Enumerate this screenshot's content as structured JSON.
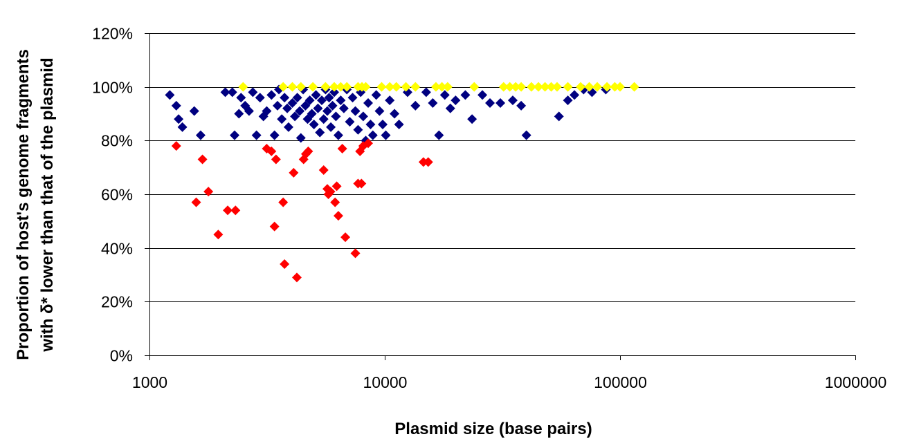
{
  "chart_data": {
    "type": "scatter",
    "title": "",
    "xlabel": "Plasmid size (base pairs)",
    "ylabel_lines": [
      "Proportion of host's genome fragments",
      "with δ* lower than that of the plasmid"
    ],
    "x_scale": "log",
    "xlim": [
      1000,
      1000000
    ],
    "ylim": [
      0,
      1.2
    ],
    "x_ticks": [
      1000,
      10000,
      100000,
      1000000
    ],
    "x_tick_labels": [
      "1000",
      "10000",
      "100000",
      "1000000"
    ],
    "y_ticks": [
      0,
      0.2,
      0.4,
      0.6,
      0.8,
      1.0,
      1.2
    ],
    "y_tick_labels": [
      "0%",
      "20%",
      "40%",
      "60%",
      "80%",
      "100%",
      "120%"
    ],
    "grid": "horizontal",
    "legend": "none",
    "marker": "diamond",
    "series": [
      {
        "color": "#000080",
        "points": [
          [
            1220,
            0.97
          ],
          [
            1300,
            0.93
          ],
          [
            1330,
            0.88
          ],
          [
            1380,
            0.85
          ],
          [
            1550,
            0.91
          ],
          [
            1650,
            0.82
          ],
          [
            2100,
            0.98
          ],
          [
            2250,
            0.98
          ],
          [
            2300,
            0.82
          ],
          [
            2400,
            0.9
          ],
          [
            2450,
            0.96
          ],
          [
            2550,
            0.93
          ],
          [
            2650,
            0.91
          ],
          [
            2750,
            0.98
          ],
          [
            2850,
            0.82
          ],
          [
            2950,
            0.96
          ],
          [
            3050,
            0.89
          ],
          [
            3150,
            0.91
          ],
          [
            3300,
            0.97
          ],
          [
            3400,
            0.82
          ],
          [
            3500,
            0.93
          ],
          [
            3550,
            0.99
          ],
          [
            3650,
            0.88
          ],
          [
            3750,
            0.96
          ],
          [
            3850,
            0.92
          ],
          [
            3900,
            0.85
          ],
          [
            4050,
            0.94
          ],
          [
            4150,
            0.89
          ],
          [
            4250,
            0.96
          ],
          [
            4350,
            0.91
          ],
          [
            4400,
            0.81
          ],
          [
            4500,
            0.99
          ],
          [
            4600,
            0.93
          ],
          [
            4700,
            0.88
          ],
          [
            4800,
            0.95
          ],
          [
            4900,
            0.9
          ],
          [
            5000,
            0.86
          ],
          [
            5100,
            0.97
          ],
          [
            5200,
            0.92
          ],
          [
            5300,
            0.83
          ],
          [
            5400,
            0.95
          ],
          [
            5500,
            0.88
          ],
          [
            5600,
            0.99
          ],
          [
            5700,
            0.91
          ],
          [
            5800,
            0.96
          ],
          [
            5900,
            0.85
          ],
          [
            6000,
            0.93
          ],
          [
            6100,
            0.98
          ],
          [
            6200,
            0.89
          ],
          [
            6350,
            0.82
          ],
          [
            6500,
            0.95
          ],
          [
            6700,
            0.92
          ],
          [
            6900,
            0.99
          ],
          [
            7100,
            0.87
          ],
          [
            7300,
            0.96
          ],
          [
            7500,
            0.91
          ],
          [
            7700,
            0.84
          ],
          [
            7900,
            0.98
          ],
          [
            8100,
            0.89
          ],
          [
            8300,
            0.8
          ],
          [
            8500,
            0.94
          ],
          [
            8700,
            0.86
          ],
          [
            8900,
            0.82
          ],
          [
            9200,
            0.97
          ],
          [
            9500,
            0.91
          ],
          [
            9800,
            0.86
          ],
          [
            10100,
            0.82
          ],
          [
            10500,
            0.95
          ],
          [
            11000,
            0.9
          ],
          [
            11500,
            0.86
          ],
          [
            12500,
            0.98
          ],
          [
            13500,
            0.93
          ],
          [
            15000,
            0.98
          ],
          [
            16000,
            0.94
          ],
          [
            17000,
            0.82
          ],
          [
            18000,
            0.97
          ],
          [
            19000,
            0.92
          ],
          [
            20000,
            0.95
          ],
          [
            22000,
            0.97
          ],
          [
            23500,
            0.88
          ],
          [
            26000,
            0.97
          ],
          [
            28000,
            0.94
          ],
          [
            31000,
            0.94
          ],
          [
            35000,
            0.95
          ],
          [
            38000,
            0.93
          ],
          [
            40000,
            0.82
          ],
          [
            55000,
            0.89
          ],
          [
            60000,
            0.95
          ],
          [
            64000,
            0.97
          ],
          [
            70000,
            0.99
          ],
          [
            76000,
            0.98
          ],
          [
            87000,
            0.99
          ]
        ]
      },
      {
        "color": "#ff0000",
        "points": [
          [
            1300,
            0.78
          ],
          [
            1580,
            0.57
          ],
          [
            1680,
            0.73
          ],
          [
            1780,
            0.61
          ],
          [
            1960,
            0.45
          ],
          [
            2150,
            0.54
          ],
          [
            2320,
            0.54
          ],
          [
            3150,
            0.77
          ],
          [
            3300,
            0.76
          ],
          [
            3400,
            0.48
          ],
          [
            3450,
            0.73
          ],
          [
            3700,
            0.57
          ],
          [
            3750,
            0.34
          ],
          [
            4100,
            0.68
          ],
          [
            4230,
            0.29
          ],
          [
            4520,
            0.73
          ],
          [
            4620,
            0.75
          ],
          [
            4730,
            0.76
          ],
          [
            5500,
            0.69
          ],
          [
            5700,
            0.62
          ],
          [
            5760,
            0.6
          ],
          [
            5880,
            0.61
          ],
          [
            6150,
            0.57
          ],
          [
            6250,
            0.63
          ],
          [
            6350,
            0.52
          ],
          [
            6600,
            0.77
          ],
          [
            6800,
            0.44
          ],
          [
            7500,
            0.38
          ],
          [
            7700,
            0.64
          ],
          [
            7850,
            0.76
          ],
          [
            7960,
            0.64
          ],
          [
            8100,
            0.78
          ],
          [
            8500,
            0.79
          ],
          [
            14600,
            0.72
          ],
          [
            15300,
            0.72
          ]
        ]
      },
      {
        "color": "#ffff00",
        "points": [
          [
            2500,
            1.0
          ],
          [
            3700,
            1.0
          ],
          [
            4050,
            1.0
          ],
          [
            4400,
            1.0
          ],
          [
            4950,
            1.0
          ],
          [
            5600,
            1.0
          ],
          [
            6100,
            1.0
          ],
          [
            6500,
            1.0
          ],
          [
            6900,
            1.0
          ],
          [
            7700,
            1.0
          ],
          [
            8000,
            1.0
          ],
          [
            8300,
            1.0
          ],
          [
            9700,
            1.0
          ],
          [
            10500,
            1.0
          ],
          [
            11200,
            1.0
          ],
          [
            12300,
            1.0
          ],
          [
            13500,
            1.0
          ],
          [
            16500,
            1.0
          ],
          [
            17500,
            1.0
          ],
          [
            18500,
            1.0
          ],
          [
            24000,
            1.0
          ],
          [
            32000,
            1.0
          ],
          [
            34000,
            1.0
          ],
          [
            36000,
            1.0
          ],
          [
            38000,
            1.0
          ],
          [
            42000,
            1.0
          ],
          [
            45000,
            1.0
          ],
          [
            48000,
            1.0
          ],
          [
            51000,
            1.0
          ],
          [
            54000,
            1.0
          ],
          [
            60000,
            1.0
          ],
          [
            68000,
            1.0
          ],
          [
            74000,
            1.0
          ],
          [
            80000,
            1.0
          ],
          [
            88000,
            1.0
          ],
          [
            95000,
            1.0
          ],
          [
            100000,
            1.0
          ],
          [
            115000,
            1.0
          ]
        ]
      }
    ]
  }
}
